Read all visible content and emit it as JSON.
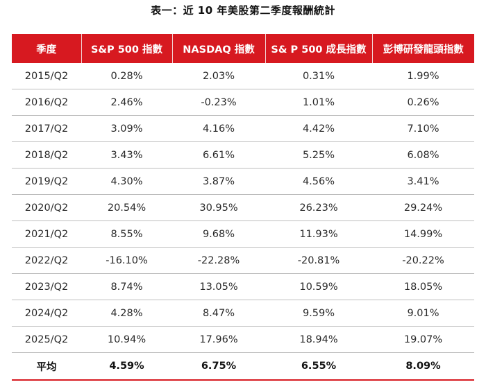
{
  "title": "表一：近 10 年美股第二季度報酬統計",
  "table": {
    "headers": [
      "季度",
      "S&P 500 指數",
      "NASDAQ 指數",
      "S& P 500 成長指數",
      "彭博研發龍頭指數"
    ],
    "rows": [
      [
        "2015/Q2",
        "0.28%",
        "2.03%",
        "0.31%",
        "1.99%"
      ],
      [
        "2016/Q2",
        "2.46%",
        "-0.23%",
        "1.01%",
        "0.26%"
      ],
      [
        "2017/Q2",
        "3.09%",
        "4.16%",
        "4.42%",
        "7.10%"
      ],
      [
        "2018/Q2",
        "3.43%",
        "6.61%",
        "5.25%",
        "6.08%"
      ],
      [
        "2019/Q2",
        "4.30%",
        "3.87%",
        "4.56%",
        "3.41%"
      ],
      [
        "2020/Q2",
        "20.54%",
        "30.95%",
        "26.23%",
        "29.24%"
      ],
      [
        "2021/Q2",
        "8.55%",
        "9.68%",
        "11.93%",
        "14.99%"
      ],
      [
        "2022/Q2",
        "-16.10%",
        "-22.28%",
        "-20.81%",
        "-20.22%"
      ],
      [
        "2023/Q2",
        "8.74%",
        "13.05%",
        "10.59%",
        "18.05%"
      ],
      [
        "2024/Q2",
        "4.28%",
        "8.47%",
        "9.59%",
        "9.01%"
      ],
      [
        "2025/Q2",
        "10.94%",
        "17.96%",
        "18.94%",
        "19.07%"
      ]
    ],
    "average": [
      "平均",
      "4.59%",
      "6.75%",
      "6.55%",
      "8.09%"
    ]
  },
  "colors": {
    "header_bg": "#d71920",
    "header_text": "#ffffff",
    "row_border": "#bdbdbd"
  }
}
